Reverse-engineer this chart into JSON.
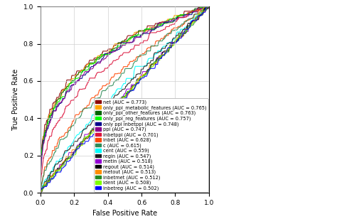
{
  "classifiers": [
    {
      "name": "net",
      "auc": 0.773,
      "color": "#8B0000"
    },
    {
      "name": "only_ppi_metabolic_features",
      "auc": 0.765,
      "color": "#FFA500"
    },
    {
      "name": "only_ppi_other_features",
      "auc": 0.763,
      "color": "#006400"
    },
    {
      "name": "only_ppi_reg_features",
      "auc": 0.757,
      "color": "#00FF00"
    },
    {
      "name": "only ppi inbetppi",
      "auc": 0.748,
      "color": "#00008B"
    },
    {
      "name": "ppi",
      "auc": 0.747,
      "color": "#8B008B"
    },
    {
      "name": "inbetppi",
      "auc": 0.701,
      "color": "#DC143C"
    },
    {
      "name": "inbet",
      "auc": 0.628,
      "color": "#FF4500"
    },
    {
      "name": "c",
      "auc": 0.615,
      "color": "#2E8B57"
    },
    {
      "name": "cent",
      "auc": 0.559,
      "color": "#00FFFF"
    },
    {
      "name": "regin",
      "auc": 0.547,
      "color": "#1C1C1C"
    },
    {
      "name": "metin",
      "auc": 0.518,
      "color": "#9400D3"
    },
    {
      "name": "regout",
      "auc": 0.514,
      "color": "#000000"
    },
    {
      "name": "metout",
      "auc": 0.513,
      "color": "#FF8C00"
    },
    {
      "name": "inbetmet",
      "auc": 0.512,
      "color": "#228B22"
    },
    {
      "name": "ident",
      "auc": 0.508,
      "color": "#7FFF00"
    },
    {
      "name": "inbetreg",
      "auc": 0.502,
      "color": "#0000FF"
    }
  ],
  "xlabel": "False Positive Rate",
  "ylabel": "True Positive Rate",
  "xlim": [
    0.0,
    1.0
  ],
  "ylim": [
    0.0,
    1.0
  ],
  "xticks": [
    0.0,
    0.2,
    0.4,
    0.6,
    0.8,
    1.0
  ],
  "yticks": [
    0.0,
    0.2,
    0.4,
    0.6,
    0.8,
    1.0
  ],
  "grid": true,
  "background_color": "#ffffff",
  "legend_fontsize": 4.8,
  "axis_fontsize": 7,
  "tick_fontsize": 6.5,
  "figsize": [
    4.74,
    3.08
  ],
  "dpi": 100
}
